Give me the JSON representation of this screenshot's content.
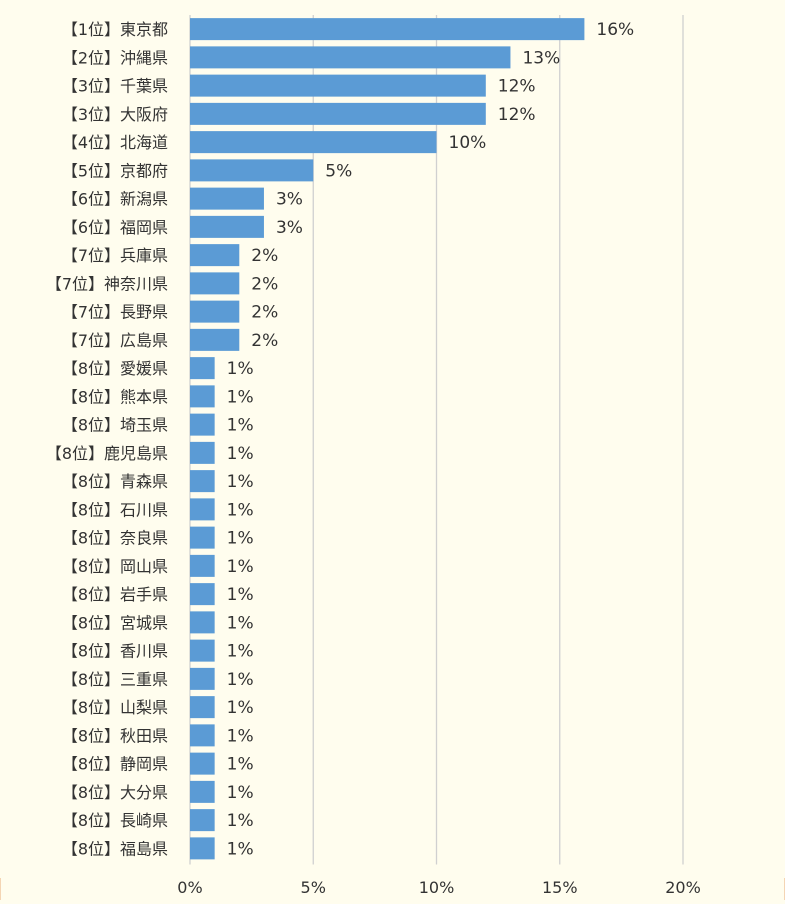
{
  "chart_data": {
    "type": "bar",
    "orientation": "horizontal",
    "title": "",
    "xlabel": "",
    "ylabel": "",
    "xlim": [
      0,
      20
    ],
    "x_ticks": [
      "0%",
      "5%",
      "10%",
      "15%",
      "20%"
    ],
    "grid": true,
    "legend": "none",
    "categories": [
      "【1位】東京都",
      "【2位】沖縄県",
      "【3位】千葉県",
      "【3位】大阪府",
      "【4位】北海道",
      "【5位】京都府",
      "【6位】新潟県",
      "【6位】福岡県",
      "【7位】兵庫県",
      "【7位】神奈川県",
      "【7位】長野県",
      "【7位】広島県",
      "【8位】愛媛県",
      "【8位】熊本県",
      "【8位】埼玉県",
      "【8位】鹿児島県",
      "【8位】青森県",
      "【8位】石川県",
      "【8位】奈良県",
      "【8位】岡山県",
      "【8位】岩手県",
      "【8位】宮城県",
      "【8位】香川県",
      "【8位】三重県",
      "【8位】山梨県",
      "【8位】秋田県",
      "【8位】静岡県",
      "【8位】大分県",
      "【8位】長崎県",
      "【8位】福島県"
    ],
    "values": [
      16,
      13,
      12,
      12,
      10,
      5,
      3,
      3,
      2,
      2,
      2,
      2,
      1,
      1,
      1,
      1,
      1,
      1,
      1,
      1,
      1,
      1,
      1,
      1,
      1,
      1,
      1,
      1,
      1,
      1
    ],
    "value_labels": [
      "16%",
      "13%",
      "12%",
      "12%",
      "10%",
      "5%",
      "3%",
      "3%",
      "2%",
      "2%",
      "2%",
      "2%",
      "1%",
      "1%",
      "1%",
      "1%",
      "1%",
      "1%",
      "1%",
      "1%",
      "1%",
      "1%",
      "1%",
      "1%",
      "1%",
      "1%",
      "1%",
      "1%",
      "1%",
      "1%"
    ],
    "colors": {
      "bar": "#5b9bd5",
      "grid": "#d0d0d0",
      "background": "#fffdee",
      "border": "#f0c8a0"
    }
  }
}
